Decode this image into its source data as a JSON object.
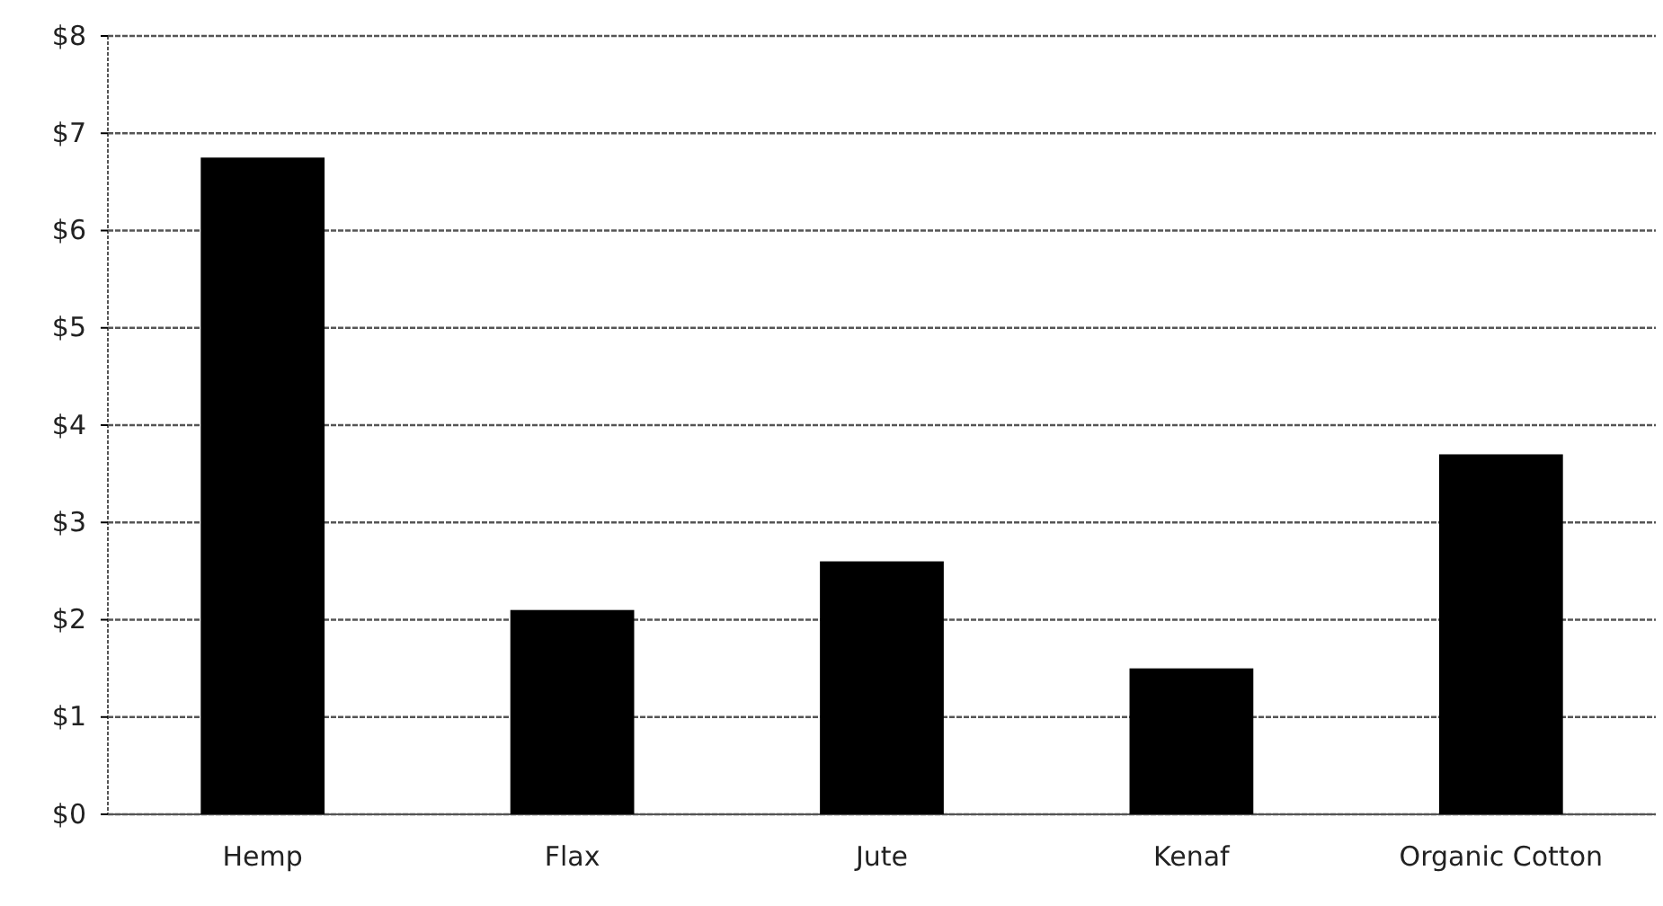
{
  "chart_data": {
    "type": "bar",
    "categories": [
      "Hemp",
      "Flax",
      "Jute",
      "Kenaf",
      "Organic Cotton"
    ],
    "values": [
      6.75,
      2.1,
      2.6,
      1.5,
      3.7
    ],
    "color": "#000000",
    "ylim": [
      0,
      8
    ],
    "yticks": [
      {
        "value": 0,
        "label": "$0"
      },
      {
        "value": 1,
        "label": "$1"
      },
      {
        "value": 2,
        "label": "$2"
      },
      {
        "value": 3,
        "label": "$3"
      },
      {
        "value": 4,
        "label": "$4"
      },
      {
        "value": 5,
        "label": "$5"
      },
      {
        "value": 6,
        "label": "$6"
      },
      {
        "value": 7,
        "label": "$7"
      },
      {
        "value": 8,
        "label": "$8"
      }
    ],
    "grid": "y"
  }
}
